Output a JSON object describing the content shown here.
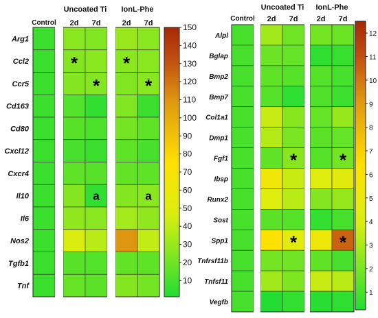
{
  "chart_data": [
    {
      "type": "heatmap",
      "columns": [
        "Control",
        "2d",
        "7d",
        "2d",
        "7d"
      ],
      "column_groups": [
        {
          "label": "Uncoated Ti",
          "columns": [
            1,
            2
          ]
        },
        {
          "label": "IonL-Phe",
          "columns": [
            3,
            4
          ]
        }
      ],
      "rows": [
        "Arg1",
        "Ccl2",
        "Ccr5",
        "Cd163",
        "Cd80",
        "Cxcl12",
        "Cxcr4",
        "Il10",
        "Il6",
        "Nos2",
        "Tgfb1",
        "Tnf"
      ],
      "values": [
        [
          7,
          26,
          24,
          30,
          26
        ],
        [
          7,
          25,
          26,
          26,
          26
        ],
        [
          7,
          25,
          25,
          24,
          26
        ],
        [
          7,
          13,
          5,
          24,
          7
        ],
        [
          7,
          14,
          11,
          21,
          16
        ],
        [
          7,
          10,
          7,
          16,
          10
        ],
        [
          7,
          16,
          14,
          17,
          16
        ],
        [
          7,
          25,
          5,
          25,
          26
        ],
        [
          7,
          28,
          26,
          33,
          28
        ],
        [
          7,
          47,
          38,
          110,
          40
        ],
        [
          7,
          14,
          13,
          17,
          16
        ],
        [
          7,
          18,
          15,
          25,
          21
        ]
      ],
      "annotations": [
        {
          "row": 1,
          "col": 1,
          "text": "*"
        },
        {
          "row": 1,
          "col": 3,
          "text": "*"
        },
        {
          "row": 2,
          "col": 2,
          "text": "*"
        },
        {
          "row": 2,
          "col": 4,
          "text": "*"
        },
        {
          "row": 7,
          "col": 2,
          "text": "a"
        },
        {
          "row": 7,
          "col": 4,
          "text": "a"
        }
      ],
      "colorbar": {
        "range": [
          1,
          150
        ],
        "ticks": [
          10,
          20,
          30,
          40,
          50,
          60,
          70,
          80,
          90,
          100,
          110,
          120,
          130,
          140,
          150
        ]
      }
    },
    {
      "type": "heatmap",
      "columns": [
        "Control",
        "2d",
        "7d",
        "2d",
        "7d"
      ],
      "column_groups": [
        {
          "label": "Uncoated Ti",
          "columns": [
            1,
            2
          ]
        },
        {
          "label": "IonL-Phe",
          "columns": [
            3,
            4
          ]
        }
      ],
      "rows": [
        "Alpl",
        "Bglap",
        "Bmp2",
        "Bmp7",
        "Col1a1",
        "Dmp1",
        "Fgf1",
        "Ibsp",
        "Runx2",
        "Sost",
        "Spp1",
        "Tnfrsf11b",
        "Tnfsf11",
        "Vegfb"
      ],
      "values": [
        [
          1,
          2.8,
          1.8,
          1.9,
          1.7
        ],
        [
          1,
          1.7,
          1.6,
          0.5,
          0.7
        ],
        [
          1,
          1.5,
          1.3,
          1.3,
          1.0
        ],
        [
          1,
          1.3,
          0.5,
          1.2,
          0.8
        ],
        [
          1,
          3.6,
          2.3,
          1.6,
          2.6
        ],
        [
          1,
          3.2,
          2.0,
          1.4,
          1.6
        ],
        [
          1,
          1.5,
          2.3,
          1.3,
          1.9
        ],
        [
          1,
          5.3,
          3.6,
          4.3,
          4.4
        ],
        [
          1,
          4.3,
          3.3,
          2.2,
          2.6
        ],
        [
          1,
          1.4,
          1.3,
          0.6,
          1.0
        ],
        [
          1,
          6.2,
          4.5,
          5.2,
          10.5
        ],
        [
          1,
          1.9,
          1.8,
          1.5,
          1.0
        ],
        [
          1,
          2.8,
          2.1,
          3.6,
          3.3
        ],
        [
          1,
          0.3,
          0.6,
          0.4,
          0.5
        ]
      ],
      "annotations": [
        {
          "row": 6,
          "col": 2,
          "text": "*"
        },
        {
          "row": 6,
          "col": 4,
          "text": "*"
        },
        {
          "row": 10,
          "col": 2,
          "text": "*"
        },
        {
          "row": 10,
          "col": 4,
          "text": "*"
        }
      ],
      "colorbar": {
        "range": [
          0.25,
          12.5
        ],
        "ticks": [
          1,
          2,
          3,
          4,
          5,
          6,
          7,
          8,
          9,
          10,
          11,
          12
        ]
      }
    }
  ]
}
